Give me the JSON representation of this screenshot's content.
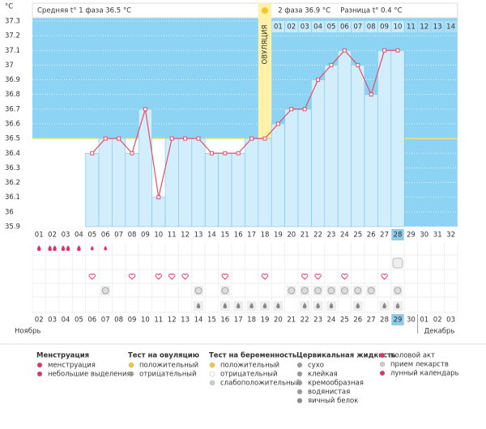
{
  "header": {
    "unit": "°C",
    "phase1": "Средняя t° 1 фаза 36.5 °C",
    "phase2": "2 фаза 36.9 °C",
    "difference": "Разница t° 0.4 °C",
    "ovulation": "ОВУЛЯЦИЯ"
  },
  "chart_data": {
    "type": "bar",
    "categories": [
      "01",
      "02",
      "03",
      "04",
      "05",
      "06",
      "07",
      "08",
      "09",
      "10",
      "11",
      "12",
      "13",
      "14",
      "15",
      "16",
      "17",
      "18",
      "19",
      "20",
      "21",
      "22",
      "23",
      "24",
      "25",
      "26",
      "27",
      "28",
      "29",
      "30",
      "31",
      "32"
    ],
    "values": [
      null,
      null,
      null,
      null,
      36.4,
      36.5,
      36.5,
      36.4,
      36.7,
      36.1,
      36.5,
      36.5,
      36.5,
      36.4,
      36.4,
      36.4,
      36.5,
      36.5,
      36.6,
      36.7,
      36.7,
      36.9,
      37.0,
      37.1,
      37.0,
      36.8,
      37.1,
      37.1,
      null,
      null,
      null,
      null
    ],
    "ylim": [
      35.9,
      37.3
    ],
    "yticks": [
      35.9,
      36,
      36.1,
      36.2,
      36.3,
      36.4,
      36.5,
      36.6,
      36.7,
      36.8,
      36.9,
      37,
      37.1,
      37.2,
      37.3
    ],
    "cover_line": 36.5,
    "ovulation_day": 18,
    "phase2_days": [
      "01",
      "02",
      "03",
      "04",
      "05",
      "06",
      "07",
      "08",
      "09",
      "10",
      "11",
      "12",
      "13",
      "14"
    ],
    "dates": [
      "02",
      "03",
      "04",
      "05",
      "06",
      "07",
      "08",
      "09",
      "10",
      "11",
      "12",
      "13",
      "14",
      "15",
      "16",
      "17",
      "18",
      "19",
      "20",
      "21",
      "22",
      "23",
      "24",
      "25",
      "26",
      "27",
      "28",
      "29",
      "30",
      "01",
      "02",
      "03"
    ],
    "months": [
      "Ноябрь",
      "Декабрь"
    ],
    "events": {
      "menstruation": [
        1,
        2,
        3,
        4,
        5,
        6
      ],
      "pregnancy_test": [
        28
      ],
      "intercourse": [
        5,
        8,
        10,
        11,
        12,
        15,
        18,
        21,
        22,
        24,
        27
      ],
      "medication": [
        6,
        13,
        15,
        20,
        21,
        22,
        23,
        24,
        25,
        26,
        28
      ],
      "cervical_fluid": [
        13,
        15,
        16,
        17,
        18,
        19,
        21,
        22,
        23,
        25,
        27,
        28
      ]
    }
  },
  "legend": [
    {
      "title": "Менструация",
      "items": [
        "менструация",
        "небольшие выделения"
      ]
    },
    {
      "title": "Тест на овуляцию",
      "items": [
        "положительный",
        "отрицательный"
      ]
    },
    {
      "title": "Тест на беременность",
      "items": [
        "положительный",
        "отрицательный",
        "слабоположительный"
      ]
    },
    {
      "title": "Цервикальная жидкость",
      "items": [
        "сухо",
        "клейкая",
        "кремообразная",
        "водянистая",
        "яичный белок"
      ]
    },
    {
      "items": [
        "половой акт",
        "прием лекарств",
        "лунный календарь"
      ]
    }
  ]
}
